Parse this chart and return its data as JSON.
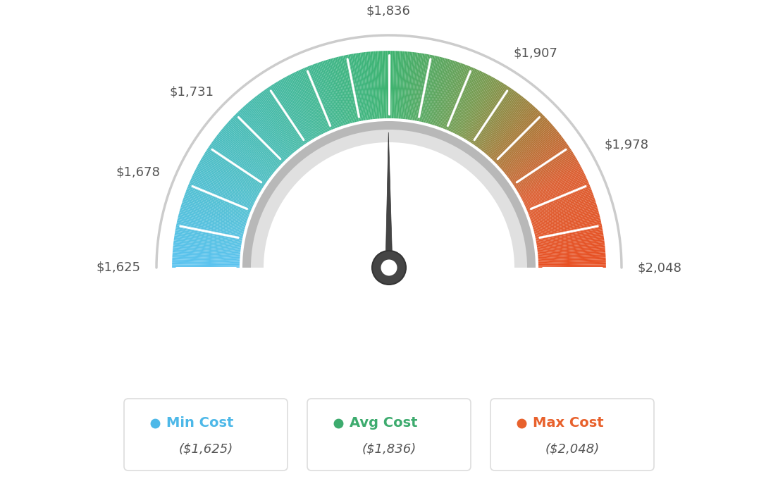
{
  "min_val": 1625,
  "max_val": 2048,
  "avg_val": 1836,
  "needle_value": 1836,
  "bg_color": "#ffffff",
  "legend_items": [
    {
      "label": "Min Cost",
      "value": "($1,625)",
      "color": "#4db8e8"
    },
    {
      "label": "Avg Cost",
      "value": "($1,836)",
      "color": "#3dab6e"
    },
    {
      "label": "Max Cost",
      "value": "($2,048)",
      "color": "#e8612c"
    }
  ],
  "label_positions": [
    {
      "val": 1625,
      "text": "$1,625",
      "ha": "right",
      "va": "center"
    },
    {
      "val": 1678,
      "text": "$1,678",
      "ha": "right",
      "va": "center"
    },
    {
      "val": 1731,
      "text": "$1,731",
      "ha": "right",
      "va": "center"
    },
    {
      "val": 1836,
      "text": "$1,836",
      "ha": "center",
      "va": "bottom"
    },
    {
      "val": 1907,
      "text": "$1,907",
      "ha": "left",
      "va": "center"
    },
    {
      "val": 1978,
      "text": "$1,978",
      "ha": "left",
      "va": "center"
    },
    {
      "val": 2048,
      "text": "$2,048",
      "ha": "left",
      "va": "center"
    }
  ],
  "color_stops": [
    [
      0.0,
      [
        91,
        195,
        240
      ]
    ],
    [
      0.25,
      [
        72,
        188,
        180
      ]
    ],
    [
      0.5,
      [
        61,
        179,
        112
      ]
    ],
    [
      0.65,
      [
        120,
        155,
        80
      ]
    ],
    [
      0.75,
      [
        170,
        120,
        55
      ]
    ],
    [
      0.85,
      [
        220,
        95,
        50
      ]
    ],
    [
      1.0,
      [
        232,
        80,
        35
      ]
    ]
  ]
}
